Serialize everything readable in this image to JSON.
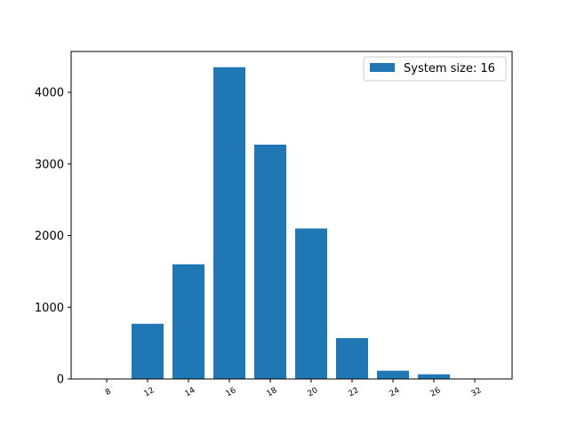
{
  "chart_data": {
    "type": "bar",
    "title": "",
    "xlabel": "",
    "ylabel": "",
    "categories": [
      "8",
      "12",
      "14",
      "16",
      "18",
      "20",
      "22",
      "24",
      "26",
      "32"
    ],
    "series": [
      {
        "name": "System size: 16",
        "values": [
          0,
          770,
          1600,
          4350,
          3270,
          2100,
          570,
          115,
          65,
          0
        ]
      }
    ],
    "ylim": [
      0,
      4570
    ],
    "yticks": [
      "0",
      "1000",
      "2000",
      "3000",
      "4000"
    ],
    "grid": false,
    "legend_position": "top-right",
    "bar_color": "#1f77b4",
    "x_tick_rotation_deg": -30
  }
}
